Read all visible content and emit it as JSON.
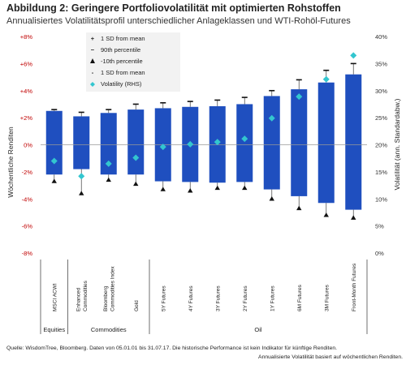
{
  "title": "Abbildung 2: Geringere Portfoliovolatilität mit optimierten Rohstoffen",
  "subtitle": "Annualisiertes Volatilitätsprofil unterschiedlicher Anlageklassen und WTI-Rohöl-Futures",
  "source_line1": "Quelle: WisdomTree, Bloomberg. Daten von 05.01.01 bis 31.07.17. Die historische Performance ist kein Indikator für künftige Renditen.",
  "source_line2": "Annualisierte Volatilität basiert auf wöchentlichen Renditen.",
  "legend": [
    {
      "symbol": "+",
      "label": "1 SD from mean"
    },
    {
      "symbol": "−",
      "label": "90th percentile"
    },
    {
      "symbol": "▲",
      "label": "-10th percentile"
    },
    {
      "symbol": "-",
      "label": "1 SD from mean"
    },
    {
      "symbol": "◆",
      "label": "Volatility (RHS)"
    }
  ],
  "groups": [
    {
      "label": "Equities",
      "from": 0,
      "to": 0
    },
    {
      "label": "Commodities",
      "from": 1,
      "to": 3
    },
    {
      "label": "Oil",
      "from": 4,
      "to": 11
    }
  ],
  "colors": {
    "bar": "#1f4fbf",
    "diamond": "#33c6cf",
    "marker": "#111111",
    "left_tick": "#c00000"
  },
  "chart_data": {
    "type": "bar",
    "categories": [
      "MSCI ACWI",
      "Enhanced Commodities",
      "Bloomberg Commodities Index",
      "Gold",
      "5Y Futures",
      "4Y Futures",
      "3Y Futures",
      "2Y Futures",
      "1Y Futures",
      "6M Futures",
      "3M Futures",
      "Front-Month Futures"
    ],
    "ylabel": "Wöchentliche Renditen",
    "y2label": "Volatilität (ann. Standardabw.)",
    "ylim": [
      -8,
      8
    ],
    "y2lim": [
      0,
      40
    ],
    "yticks": [
      "+8%",
      "+6%",
      "+4%",
      "+2%",
      "0%",
      "-2%",
      "-4%",
      "-6%",
      "-8%"
    ],
    "y2ticks": [
      "40%",
      "35%",
      "30%",
      "25%",
      "20%",
      "15%",
      "10%",
      "5%",
      "0%"
    ],
    "series": [
      {
        "name": "1 SD from mean",
        "values": [
          2.5,
          2.1,
          2.35,
          2.6,
          2.7,
          2.8,
          2.85,
          3.0,
          3.6,
          4.1,
          4.6,
          5.2
        ]
      },
      {
        "name": "90th percentile",
        "values": [
          2.6,
          2.4,
          2.6,
          3.0,
          3.1,
          3.2,
          3.3,
          3.5,
          4.0,
          4.8,
          5.5,
          6.0
        ]
      },
      {
        "name": "-10th percentile",
        "values": [
          -2.7,
          -3.6,
          -2.6,
          -2.9,
          -3.3,
          -3.4,
          -3.2,
          -3.2,
          -4.0,
          -4.7,
          -5.2,
          -5.4
        ]
      },
      {
        "name": "1 SD from mean",
        "values": [
          -2.2,
          -1.8,
          -2.2,
          -2.2,
          -2.7,
          -2.75,
          -2.8,
          -2.75,
          -3.3,
          -3.8,
          -4.3,
          -4.8
        ]
      },
      {
        "name": "Volatility (RHS)",
        "values": [
          17.0,
          14.2,
          16.5,
          17.6,
          19.6,
          20.1,
          20.5,
          21.1,
          24.9,
          28.9,
          32.1,
          36.5
        ]
      }
    ],
    "grid": false,
    "legend_position": "top-left"
  }
}
